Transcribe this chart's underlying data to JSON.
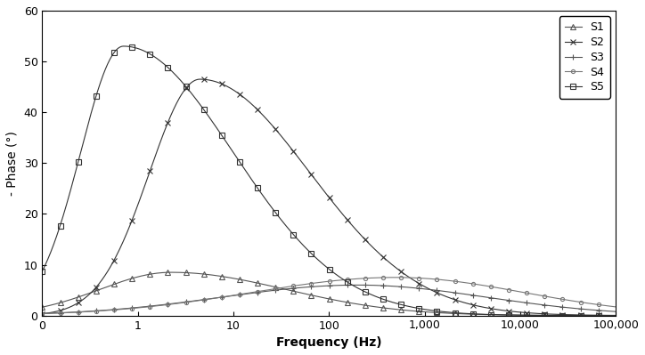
{
  "title": "",
  "xlabel": "Frequency (Hz)",
  "ylabel": "- Phase (°)",
  "ylim": [
    0,
    60
  ],
  "yticks": [
    0,
    10,
    20,
    30,
    40,
    50,
    60
  ],
  "series": [
    {
      "label": "S1",
      "marker": "^",
      "color": "#555555",
      "markersize": 4,
      "linewidth": 0.8,
      "peak_freq_log": 0.35,
      "peak_val": 8.5,
      "rise_slope": 0.9,
      "fall_slope": 0.35
    },
    {
      "label": "S2",
      "marker": "x",
      "color": "#333333",
      "markersize": 5,
      "linewidth": 0.8,
      "peak_freq_log": 0.65,
      "peak_val": 46.5,
      "rise_slope": 1.8,
      "fall_slope": 0.38
    },
    {
      "label": "S3",
      "marker": "+",
      "color": "#555555",
      "markersize": 5,
      "linewidth": 0.8,
      "peak_freq_log": 2.3,
      "peak_val": 6.0,
      "rise_slope": 0.25,
      "fall_slope": 0.28
    },
    {
      "label": "S4",
      "marker": "o",
      "color": "#777777",
      "markersize": 3,
      "linewidth": 0.8,
      "peak_freq_log": 2.7,
      "peak_val": 7.5,
      "rise_slope": 0.22,
      "fall_slope": 0.28
    },
    {
      "label": "S5",
      "marker": "s",
      "color": "#333333",
      "markersize": 4,
      "linewidth": 0.8,
      "peak_freq_log": -0.15,
      "peak_val": 53.0,
      "rise_slope": 2.5,
      "fall_slope": 0.38
    }
  ],
  "xmin_log": -1.0,
  "xmax_log": 5.0,
  "background_color": "#ffffff",
  "grid": false,
  "legend_loc": "upper right",
  "legend_fontsize": 9,
  "tick_fontsize": 9,
  "label_fontsize": 10,
  "xtick_positions": [
    0.1,
    1,
    10,
    100,
    1000,
    10000,
    100000
  ],
  "xtick_labels": [
    "0",
    "1",
    "10",
    "100",
    "1,000",
    "10,000",
    "100,000"
  ]
}
